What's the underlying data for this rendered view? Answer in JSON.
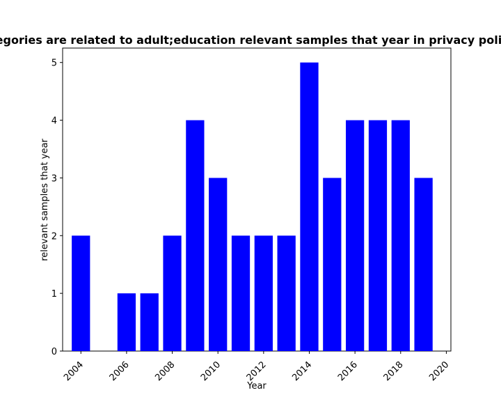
{
  "chart_data": {
    "type": "bar",
    "title": "Categories are related to adult;education relevant samples that year in privacy policies",
    "xlabel": "Year",
    "ylabel": "relevant samples that year",
    "x": [
      2004,
      2005,
      2006,
      2007,
      2008,
      2009,
      2010,
      2011,
      2012,
      2013,
      2014,
      2015,
      2016,
      2017,
      2018,
      2019
    ],
    "values": [
      2,
      0,
      1,
      1,
      2,
      4,
      3,
      2,
      2,
      2,
      5,
      3,
      4,
      4,
      4,
      3
    ],
    "xlim": [
      2003.2,
      2020.2
    ],
    "ylim": [
      0,
      5.25
    ],
    "xticks": [
      2004,
      2006,
      2008,
      2010,
      2012,
      2014,
      2016,
      2018,
      2020
    ],
    "xtick_labels": [
      "2004",
      "2006",
      "2008",
      "2010",
      "2012",
      "2014",
      "2016",
      "2018",
      "2020"
    ],
    "yticks": [
      0,
      1,
      2,
      3,
      4,
      5
    ],
    "ytick_labels": [
      "0",
      "1",
      "2",
      "3",
      "4",
      "5"
    ],
    "bar_color": "#0000ff",
    "grid": false,
    "legend": "none"
  }
}
